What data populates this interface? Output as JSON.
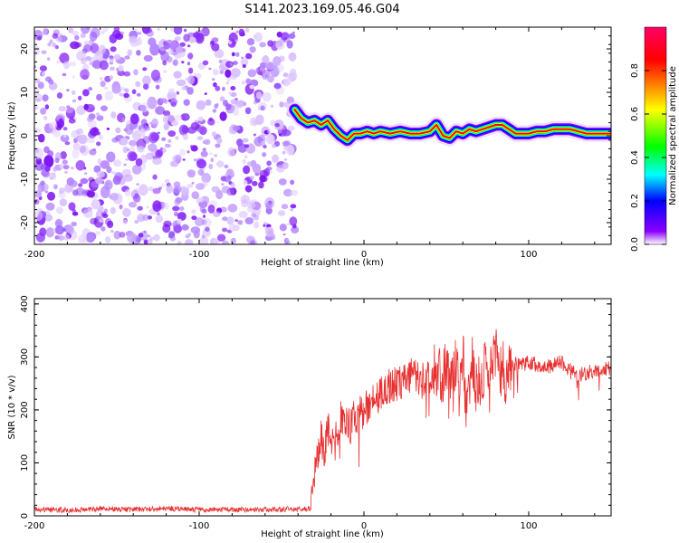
{
  "title": "S141.2023.169.05.46.G04",
  "chart_data": [
    {
      "type": "heatmap",
      "name": "spectrogram",
      "xlabel": "Height of straight line (km)",
      "ylabel": "Frequency (Hz)",
      "xlim": [
        -200,
        150
      ],
      "ylim": [
        -25,
        25
      ],
      "x_ticks": [
        -200,
        -100,
        0,
        100
      ],
      "y_ticks": [
        -20,
        -10,
        0,
        10,
        20
      ],
      "noise_region": [
        -200,
        -42
      ],
      "signal_track": [
        [
          -42,
          6
        ],
        [
          -38,
          4
        ],
        [
          -34,
          3
        ],
        [
          -30,
          3.5
        ],
        [
          -26,
          2.5
        ],
        [
          -22,
          3.5
        ],
        [
          -18,
          1.5
        ],
        [
          -14,
          0
        ],
        [
          -10,
          -1
        ],
        [
          -6,
          0.5
        ],
        [
          -2,
          0.5
        ],
        [
          2,
          1
        ],
        [
          6,
          0.5
        ],
        [
          10,
          1
        ],
        [
          16,
          0.5
        ],
        [
          22,
          1
        ],
        [
          28,
          0.5
        ],
        [
          34,
          0.5
        ],
        [
          40,
          1
        ],
        [
          44,
          2.5
        ],
        [
          48,
          0
        ],
        [
          52,
          -0.5
        ],
        [
          56,
          1
        ],
        [
          60,
          0.5
        ],
        [
          64,
          1.5
        ],
        [
          68,
          1
        ],
        [
          72,
          1.5
        ],
        [
          76,
          2
        ],
        [
          80,
          2.5
        ],
        [
          84,
          2.5
        ],
        [
          88,
          1.5
        ],
        [
          92,
          0.5
        ],
        [
          96,
          0.5
        ],
        [
          100,
          0.5
        ],
        [
          105,
          1
        ],
        [
          110,
          1
        ],
        [
          115,
          1.5
        ],
        [
          120,
          1.5
        ],
        [
          125,
          1.5
        ],
        [
          130,
          1
        ],
        [
          135,
          0.5
        ],
        [
          140,
          0.5
        ],
        [
          145,
          0.5
        ],
        [
          150,
          0.5
        ]
      ],
      "colorbar": {
        "label": "Normalized spectral amplitude",
        "range": [
          0,
          1
        ],
        "ticks": [
          "0.0",
          "0.2",
          "0.4",
          "0.6",
          "0.8"
        ],
        "colors": [
          "#ffffff",
          "#8a00ff",
          "#0000ff",
          "#00ffff",
          "#00ff00",
          "#ffff00",
          "#ff0000",
          "#ff0066"
        ]
      }
    },
    {
      "type": "line",
      "name": "snr",
      "xlabel": "Height of straight line (km)",
      "ylabel": "SNR (10 * v/v)",
      "xlim": [
        -200,
        150
      ],
      "ylim": [
        0,
        410
      ],
      "x_ticks": [
        -200,
        -100,
        0,
        100
      ],
      "y_ticks": [
        0,
        100,
        200,
        300,
        400
      ],
      "color": "#e83030",
      "series": [
        {
          "name": "SNR",
          "x": [
            -200,
            -180,
            -160,
            -140,
            -120,
            -100,
            -80,
            -60,
            -40,
            -32,
            -30,
            -28,
            -26,
            -24,
            -22,
            -20,
            -18,
            -16,
            -14,
            -12,
            -10,
            -8,
            -6,
            -4,
            -2,
            0,
            4,
            8,
            12,
            16,
            20,
            24,
            28,
            32,
            36,
            40,
            44,
            48,
            50,
            52,
            54,
            56,
            58,
            60,
            62,
            64,
            66,
            68,
            70,
            72,
            74,
            76,
            78,
            80,
            82,
            84,
            86,
            88,
            90,
            95,
            100,
            105,
            110,
            115,
            120,
            125,
            130,
            135,
            140,
            145,
            150
          ],
          "values": [
            12,
            11,
            13,
            12,
            14,
            11,
            12,
            12,
            13,
            14,
            80,
            110,
            150,
            120,
            170,
            140,
            130,
            160,
            190,
            170,
            175,
            165,
            200,
            185,
            195,
            200,
            215,
            225,
            235,
            245,
            250,
            255,
            265,
            260,
            255,
            270,
            280,
            270,
            290,
            240,
            270,
            300,
            220,
            320,
            190,
            230,
            300,
            240,
            280,
            260,
            300,
            240,
            290,
            310,
            250,
            290,
            260,
            280,
            290,
            285,
            290,
            285,
            280,
            285,
            290,
            275,
            265,
            270,
            275,
            280,
            278
          ]
        }
      ]
    }
  ]
}
